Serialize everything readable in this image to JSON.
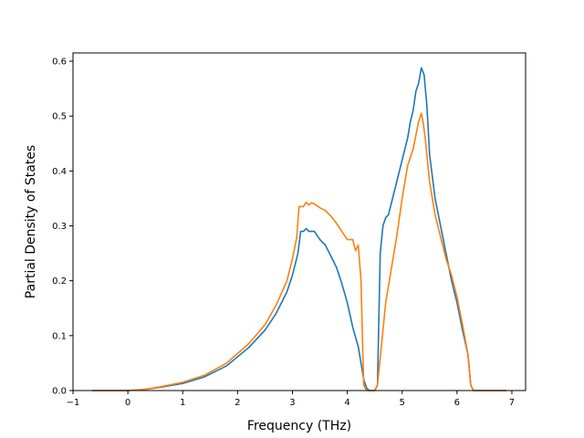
{
  "chart_data": {
    "type": "line",
    "title": "",
    "xlabel": "Frequency (THz)",
    "ylabel": "Partial Density of States",
    "xlim": [
      -1,
      7.25
    ],
    "ylim": [
      0,
      0.615
    ],
    "xticks": [
      -1,
      0,
      1,
      2,
      3,
      4,
      5,
      6,
      7
    ],
    "yticks": [
      0.0,
      0.1,
      0.2,
      0.3,
      0.4,
      0.5,
      0.6
    ],
    "xtick_labels": [
      "−1",
      "0",
      "1",
      "2",
      "3",
      "4",
      "5",
      "6",
      "7"
    ],
    "ytick_labels": [
      "0.0",
      "0.1",
      "0.2",
      "0.3",
      "0.4",
      "0.5",
      "0.6"
    ],
    "grid": false,
    "series": [
      {
        "color": "#1f77b4",
        "x": [
          -0.65,
          0.0,
          0.3,
          0.6,
          1.0,
          1.4,
          1.8,
          2.2,
          2.5,
          2.7,
          2.9,
          3.0,
          3.1,
          3.15,
          3.2,
          3.25,
          3.3,
          3.35,
          3.4,
          3.5,
          3.6,
          3.7,
          3.8,
          3.9,
          4.0,
          4.1,
          4.2,
          4.25,
          4.3,
          4.35,
          4.4,
          4.5,
          4.55,
          4.6,
          4.65,
          4.7,
          4.75,
          4.8,
          4.85,
          4.9,
          4.95,
          5.0,
          5.05,
          5.1,
          5.15,
          5.2,
          5.25,
          5.3,
          5.35,
          5.4,
          5.45,
          5.5,
          5.6,
          5.7,
          5.8,
          5.9,
          6.0,
          6.1,
          6.2,
          6.25,
          6.3,
          6.5,
          6.9
        ],
        "y": [
          0.0,
          0.0,
          0.002,
          0.006,
          0.013,
          0.025,
          0.045,
          0.078,
          0.11,
          0.14,
          0.18,
          0.21,
          0.25,
          0.29,
          0.29,
          0.295,
          0.29,
          0.29,
          0.29,
          0.275,
          0.265,
          0.245,
          0.225,
          0.195,
          0.16,
          0.115,
          0.08,
          0.05,
          0.02,
          0.005,
          0.0,
          0.0,
          0.01,
          0.25,
          0.3,
          0.315,
          0.32,
          0.34,
          0.36,
          0.38,
          0.4,
          0.42,
          0.44,
          0.46,
          0.49,
          0.51,
          0.545,
          0.56,
          0.588,
          0.575,
          0.52,
          0.43,
          0.35,
          0.3,
          0.25,
          0.2,
          0.16,
          0.11,
          0.065,
          0.01,
          0.0,
          0.0,
          0.0
        ]
      },
      {
        "color": "#ff7f0e",
        "x": [
          -0.65,
          0.0,
          0.3,
          0.6,
          1.0,
          1.4,
          1.8,
          2.2,
          2.5,
          2.7,
          2.9,
          3.0,
          3.08,
          3.12,
          3.15,
          3.2,
          3.25,
          3.3,
          3.35,
          3.4,
          3.5,
          3.6,
          3.7,
          3.8,
          3.9,
          4.0,
          4.1,
          4.15,
          4.2,
          4.25,
          4.28,
          4.3,
          4.35,
          4.4,
          4.5,
          4.55,
          4.6,
          4.65,
          4.7,
          4.8,
          4.9,
          5.0,
          5.1,
          5.2,
          5.25,
          5.3,
          5.35,
          5.38,
          5.42,
          5.5,
          5.6,
          5.7,
          5.8,
          5.9,
          6.0,
          6.1,
          6.2,
          6.25,
          6.3,
          6.5,
          6.9
        ],
        "y": [
          0.0,
          0.0,
          0.002,
          0.007,
          0.015,
          0.028,
          0.05,
          0.085,
          0.12,
          0.155,
          0.2,
          0.24,
          0.28,
          0.335,
          0.335,
          0.335,
          0.343,
          0.338,
          0.342,
          0.34,
          0.333,
          0.328,
          0.318,
          0.305,
          0.29,
          0.275,
          0.275,
          0.255,
          0.265,
          0.2,
          0.08,
          0.01,
          0.0,
          0.0,
          0.0,
          0.01,
          0.06,
          0.11,
          0.16,
          0.22,
          0.28,
          0.35,
          0.41,
          0.44,
          0.465,
          0.49,
          0.505,
          0.49,
          0.46,
          0.38,
          0.32,
          0.28,
          0.24,
          0.21,
          0.17,
          0.12,
          0.065,
          0.01,
          0.0,
          0.0,
          0.0
        ]
      }
    ]
  }
}
